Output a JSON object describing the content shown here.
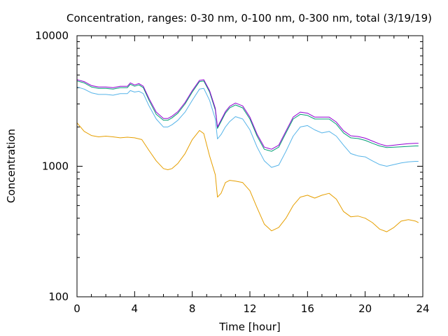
{
  "chart_data": {
    "type": "line",
    "title": "Concentration, ranges: 0-30 nm, 0-100 nm, 0-300 nm, total (3/19/19)",
    "xlabel": "Time [hour]",
    "ylabel": "Concentration",
    "xlim": [
      0,
      24
    ],
    "ylim": [
      100,
      10000
    ],
    "yscale": "log",
    "xticks": [
      "0",
      "4",
      "8",
      "12",
      "16",
      "20",
      "24"
    ],
    "yticks": [
      "100",
      "1000",
      "10000"
    ],
    "grid": false,
    "legend": "none",
    "series": [
      {
        "color": "#e69f00",
        "x": [
          0,
          0.5,
          1,
          1.5,
          2,
          2.5,
          3,
          3.5,
          4,
          4.5,
          5,
          5.5,
          6,
          6.3,
          6.6,
          7,
          7.5,
          8,
          8.5,
          8.8,
          9.2,
          9.6,
          9.75,
          10,
          10.3,
          10.6,
          11,
          11.5,
          12,
          12.5,
          13,
          13.5,
          14,
          14.5,
          15,
          15.5,
          16,
          16.5,
          17,
          17.5,
          18,
          18.5,
          19,
          19.5,
          20,
          20.5,
          21,
          21.5,
          22,
          22.5,
          23,
          23.5,
          23.7
        ],
        "values": [
          2150,
          1850,
          1720,
          1680,
          1700,
          1680,
          1650,
          1670,
          1650,
          1600,
          1320,
          1100,
          960,
          940,
          960,
          1050,
          1250,
          1600,
          1880,
          1780,
          1200,
          860,
          580,
          620,
          750,
          780,
          770,
          750,
          650,
          480,
          360,
          320,
          340,
          400,
          500,
          580,
          600,
          570,
          600,
          620,
          560,
          450,
          410,
          415,
          400,
          370,
          330,
          315,
          340,
          380,
          390,
          380,
          370
        ]
      },
      {
        "color": "#56b4e9",
        "x": [
          0,
          0.5,
          1,
          1.5,
          2,
          2.5,
          3,
          3.5,
          3.7,
          4,
          4.3,
          4.6,
          5,
          5.5,
          6,
          6.3,
          6.6,
          7,
          7.5,
          8,
          8.5,
          8.8,
          9.2,
          9.6,
          9.75,
          10,
          10.3,
          10.6,
          11,
          11.5,
          12,
          12.5,
          13,
          13.5,
          14,
          14.5,
          15,
          15.5,
          16,
          16.5,
          17,
          17.5,
          18,
          18.5,
          19,
          19.5,
          20,
          20.5,
          21,
          21.5,
          22,
          22.5,
          23,
          23.5,
          23.7
        ],
        "values": [
          4050,
          3900,
          3650,
          3550,
          3550,
          3500,
          3600,
          3600,
          3800,
          3700,
          3750,
          3600,
          2900,
          2300,
          2000,
          2000,
          2080,
          2250,
          2600,
          3200,
          3900,
          3950,
          3200,
          2300,
          1620,
          1750,
          2000,
          2200,
          2400,
          2300,
          1900,
          1400,
          1100,
          980,
          1020,
          1300,
          1700,
          2000,
          2050,
          1900,
          1800,
          1850,
          1700,
          1450,
          1250,
          1200,
          1180,
          1100,
          1030,
          1000,
          1030,
          1060,
          1080,
          1090,
          1090
        ]
      },
      {
        "color": "#009e73",
        "x": [
          0,
          0.5,
          1,
          1.5,
          2,
          2.5,
          3,
          3.5,
          3.7,
          4,
          4.3,
          4.6,
          5,
          5.5,
          6,
          6.3,
          6.6,
          7,
          7.5,
          8,
          8.5,
          8.8,
          9.2,
          9.6,
          9.75,
          10,
          10.3,
          10.6,
          11,
          11.5,
          12,
          12.5,
          13,
          13.5,
          14,
          14.5,
          15,
          15.5,
          16,
          16.5,
          17,
          17.5,
          18,
          18.5,
          19,
          19.5,
          20,
          20.5,
          21,
          21.5,
          22,
          22.5,
          23,
          23.5,
          23.7
        ],
        "values": [
          4500,
          4350,
          4050,
          3950,
          3950,
          3900,
          4000,
          4000,
          4250,
          4100,
          4200,
          4000,
          3200,
          2500,
          2250,
          2250,
          2350,
          2550,
          3000,
          3700,
          4450,
          4500,
          3700,
          2700,
          1950,
          2200,
          2550,
          2800,
          2950,
          2800,
          2300,
          1700,
          1350,
          1300,
          1400,
          1800,
          2300,
          2500,
          2450,
          2300,
          2300,
          2300,
          2100,
          1800,
          1650,
          1630,
          1580,
          1500,
          1430,
          1390,
          1400,
          1410,
          1420,
          1430,
          1430
        ]
      },
      {
        "color": "#9400d3",
        "x": [
          0,
          0.5,
          1,
          1.5,
          2,
          2.5,
          3,
          3.5,
          3.7,
          4,
          4.3,
          4.6,
          5,
          5.5,
          6,
          6.3,
          6.6,
          7,
          7.5,
          8,
          8.5,
          8.8,
          9.2,
          9.6,
          9.75,
          10,
          10.3,
          10.6,
          11,
          11.5,
          12,
          12.5,
          13,
          13.5,
          14,
          14.5,
          15,
          15.5,
          16,
          16.5,
          17,
          17.5,
          18,
          18.5,
          19,
          19.5,
          20,
          20.5,
          21,
          21.5,
          22,
          22.5,
          23,
          23.5,
          23.7
        ],
        "values": [
          4600,
          4450,
          4150,
          4050,
          4050,
          4000,
          4100,
          4100,
          4350,
          4200,
          4300,
          4100,
          3300,
          2600,
          2320,
          2320,
          2420,
          2620,
          3080,
          3800,
          4550,
          4600,
          3800,
          2780,
          2000,
          2260,
          2620,
          2880,
          3050,
          2900,
          2380,
          1760,
          1400,
          1350,
          1450,
          1860,
          2380,
          2600,
          2550,
          2380,
          2380,
          2380,
          2180,
          1870,
          1710,
          1690,
          1640,
          1560,
          1480,
          1430,
          1450,
          1470,
          1490,
          1500,
          1500
        ]
      }
    ]
  }
}
